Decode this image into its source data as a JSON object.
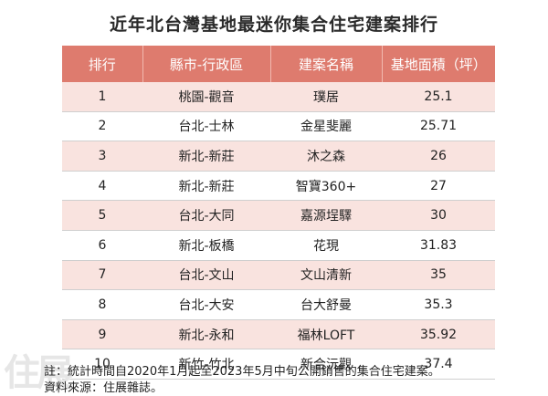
{
  "title": "近年北台灣基地最迷你集合住宅建案排行",
  "headers": [
    "排行",
    "縣市-行政區",
    "建案名稱",
    "基地面積（坪）"
  ],
  "rows": [
    {
      "rank": "1",
      "region": "桃園-觀音",
      "name": "璞居",
      "area": "25.1"
    },
    {
      "rank": "2",
      "region": "台北-士林",
      "name": "金星斐麗",
      "area": "25.71"
    },
    {
      "rank": "3",
      "region": "新北-新莊",
      "name": "沐之森",
      "area": "26"
    },
    {
      "rank": "4",
      "region": "新北-新莊",
      "name": "智寶360+",
      "area": "27"
    },
    {
      "rank": "5",
      "region": "台北-大同",
      "name": "嘉源埕驛",
      "area": "30"
    },
    {
      "rank": "6",
      "region": "新北-板橋",
      "name": "花現",
      "area": "31.83"
    },
    {
      "rank": "7",
      "region": "台北-文山",
      "name": "文山清新",
      "area": "35"
    },
    {
      "rank": "8",
      "region": "台北-大安",
      "name": "台大舒曼",
      "area": "35.3"
    },
    {
      "rank": "9",
      "region": "新北-永和",
      "name": "福林LOFT",
      "area": "35.92"
    },
    {
      "rank": "10",
      "region": "新竹-竹北",
      "name": "新合沅觀",
      "area": "37.4"
    }
  ],
  "notes": {
    "line1": "註：統計時間自2020年1月起至2023年5月中旬公開銷售的集合住宅建案。",
    "line2": "資料來源：住展雜誌。"
  },
  "watermark": "住展",
  "colors": {
    "header_bg": "#de7b6e",
    "stripe": "#f9e3df"
  }
}
